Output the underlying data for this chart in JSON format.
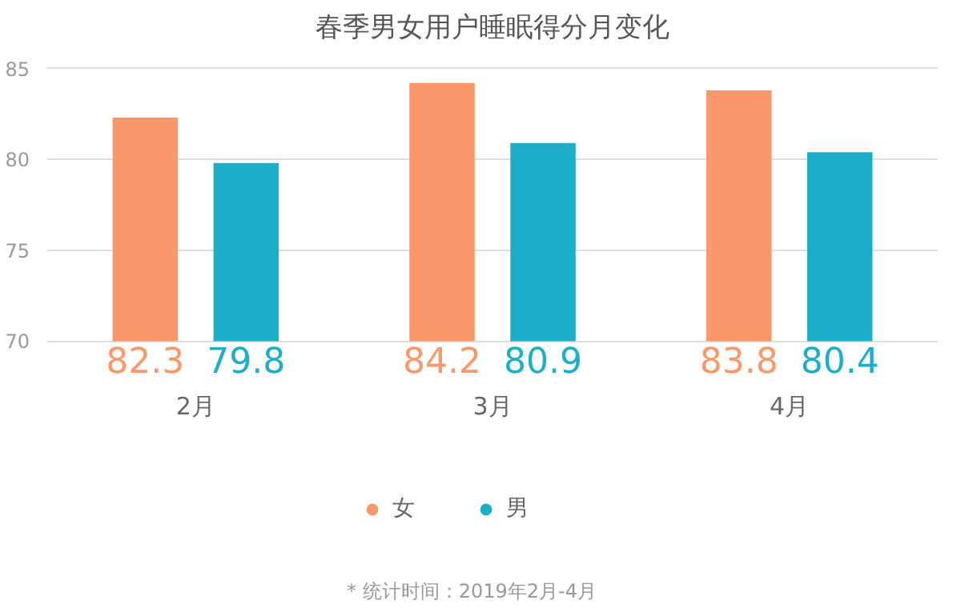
{
  "chart_data": {
    "type": "bar",
    "title": "春季男女用户睡眠得分月变化",
    "categories": [
      "2月",
      "3月",
      "4月"
    ],
    "series": [
      {
        "name": "女",
        "color": "#f9996b",
        "values": [
          82.3,
          84.2,
          83.8
        ]
      },
      {
        "name": "男",
        "color": "#1cafc7",
        "values": [
          79.8,
          80.9,
          80.4
        ]
      }
    ],
    "ylim": [
      70,
      85
    ],
    "yticks": [
      70,
      75,
      80,
      85
    ],
    "grid": "y",
    "data_labels": true,
    "legend": "bottom",
    "annotations": [
      "* 统计时间：2019年2月-4月"
    ]
  }
}
